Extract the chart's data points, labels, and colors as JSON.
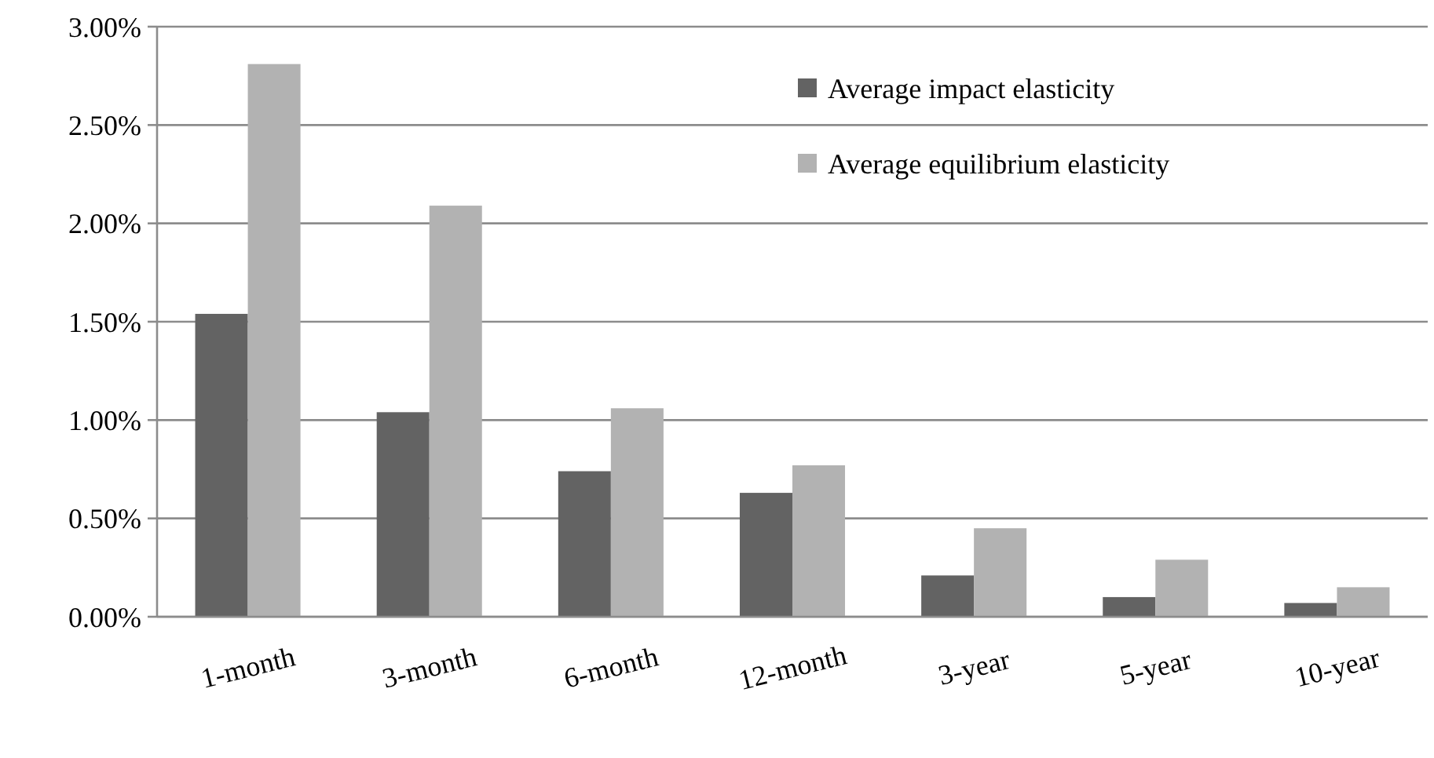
{
  "chart_data": {
    "type": "bar",
    "categories": [
      "1-month",
      "3-month",
      "6-month",
      "12-month",
      "3-year",
      "5-year",
      "10-year"
    ],
    "series": [
      {
        "name": "Average impact elasticity",
        "color": "#636363",
        "values": [
          1.54,
          1.04,
          0.74,
          0.63,
          0.21,
          0.1,
          0.07
        ]
      },
      {
        "name": "Average equilibrium elasticity",
        "color": "#b2b2b2",
        "values": [
          2.81,
          2.09,
          1.06,
          0.77,
          0.45,
          0.29,
          0.15
        ]
      }
    ],
    "ylim": [
      0,
      3
    ],
    "yticks": [
      {
        "value": 0,
        "label": "0.00%"
      },
      {
        "value": 0.5,
        "label": "0.50%"
      },
      {
        "value": 1,
        "label": "1.00%"
      },
      {
        "value": 1.5,
        "label": "1.50%"
      },
      {
        "value": 2,
        "label": "2.00%"
      },
      {
        "value": 2.5,
        "label": "2.50%"
      },
      {
        "value": 3,
        "label": "3.00%"
      }
    ],
    "grid": "y",
    "legend": "top right"
  }
}
